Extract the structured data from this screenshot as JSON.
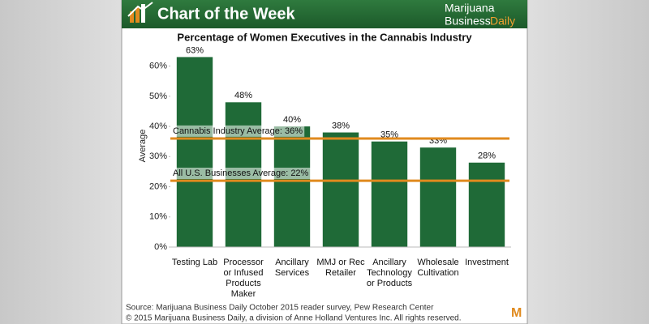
{
  "header": {
    "title": "Chart of the Week",
    "brand": [
      "Marijuana",
      "Business",
      "Daily"
    ]
  },
  "chart_data": {
    "type": "bar",
    "title": "Percentage of Women Executives in the Cannabis Industry",
    "y_label": "Average",
    "categories": [
      "Testing Lab",
      "Processor or Infused Products Maker",
      "Ancillary Services",
      "MMJ or Rec Retailer",
      "Ancillary Technology or Products",
      "Wholesale Cultivation",
      "Investment"
    ],
    "values": [
      63,
      48,
      40,
      38,
      35,
      33,
      28
    ],
    "value_labels": [
      "63%",
      "48%",
      "40%",
      "38%",
      "35%",
      "33%",
      "28%"
    ],
    "color": "#1f6a37",
    "ylim": [
      0,
      65
    ],
    "yticks": [
      {
        "value": 0,
        "label": "0%"
      },
      {
        "value": 10,
        "label": "10%"
      },
      {
        "value": 20,
        "label": "20%"
      },
      {
        "value": 30,
        "label": "30%"
      },
      {
        "value": 40,
        "label": "40%"
      },
      {
        "value": 50,
        "label": "50%"
      },
      {
        "value": 60,
        "label": "60%"
      }
    ],
    "annotations": [
      {
        "label": "Cannabis Industry Average: 36%",
        "value": 36,
        "color": "#e08a1e"
      },
      {
        "label": "All U.S. Businesses Average: 22%",
        "value": 22,
        "color": "#e08a1e"
      }
    ]
  },
  "footer": {
    "source": "Source: Marijuana Business Daily October 2015 reader survey, Pew Research Center",
    "copyright": "© 2015 Marijuana Business Daily, a division of Anne Holland Ventures Inc. All rights reserved.",
    "logo": "M"
  }
}
